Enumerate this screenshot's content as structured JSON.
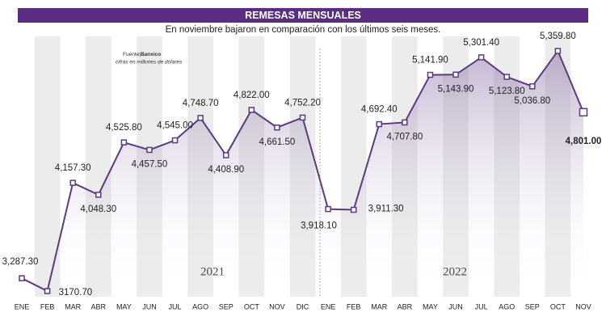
{
  "chart_data": {
    "type": "line",
    "title": "REMESAS MENSUALES",
    "subtitle": "En noviembre bajaron en comparación con los últimos seis meses.",
    "source_label": "Fuente|",
    "source": "Banxico",
    "note": "cifras en millones de dólares",
    "annotations": [
      "2021",
      "2022"
    ],
    "categories": [
      "ENE",
      "FEB",
      "MAR",
      "ABR",
      "MAY",
      "JUN",
      "JUL",
      "AGO",
      "SEP",
      "OCT",
      "NOV",
      "DIC",
      "ENE",
      "FEB",
      "MAR",
      "ABR",
      "MAY",
      "JUN",
      "JUL",
      "AGO",
      "SEP",
      "OCT",
      "NOV"
    ],
    "values": [
      3287.3,
      3170.7,
      4157.3,
      4048.3,
      4525.8,
      4457.5,
      4545.0,
      4748.7,
      4408.9,
      4822.0,
      4661.5,
      4752.2,
      3918.1,
      3911.3,
      4692.4,
      4707.8,
      5141.9,
      5143.9,
      5301.4,
      5123.8,
      5036.8,
      5359.8,
      4801.0
    ],
    "value_labels": [
      "3,287.30",
      "3170.70",
      "4,157.30",
      "4,048.30",
      "4,525.80",
      "4,457.50",
      "4,545.00",
      "4,748.70",
      "4,408.90",
      "4,822.00",
      "4,661.50",
      "4,752.20",
      "3,918.10",
      "3,911.30",
      "4,692.40",
      "4,707.80",
      "5,141.90",
      "5,143.90",
      "5,301.40",
      "5,123.80",
      "5,036.80",
      "5,359.80",
      "4,801.00"
    ],
    "color": "#5b3a7e"
  }
}
